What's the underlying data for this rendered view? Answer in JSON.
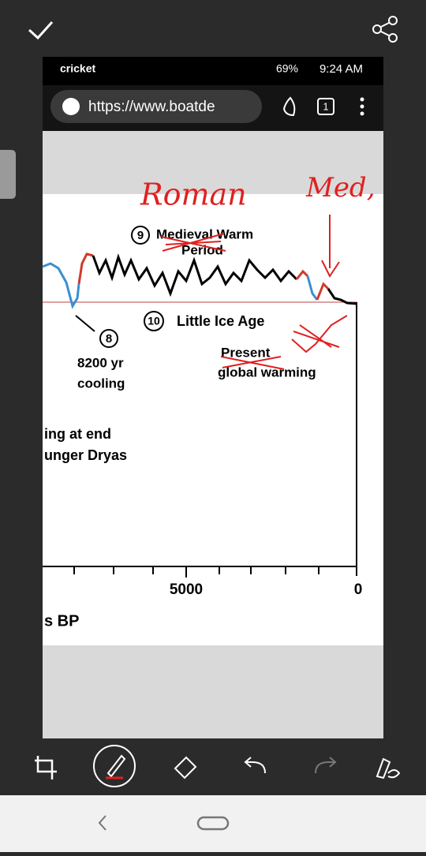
{
  "status_bar": {
    "carrier": "cricket",
    "battery": "69%",
    "time": "9:24 AM"
  },
  "browser": {
    "url": "https://www.boatde",
    "tabs": "1"
  },
  "image": {
    "marker_9": "9",
    "period_9_line1": "Medieval Warm",
    "period_9_line2": "Period",
    "marker_8": "8",
    "event_8_line1": "8200 yr",
    "event_8_line2": "cooling",
    "marker_10": "10",
    "event_10": "Little Ice Age",
    "present_line1": "Present",
    "present_line2": "global warming",
    "left_line1": "ing at end",
    "left_line2": "unger Dryas",
    "x_tick_5000": "5000",
    "x_tick_0": "0",
    "x_axis_label": "s BP"
  },
  "annotations": {
    "roman": "Roman",
    "med": "Med,"
  }
}
